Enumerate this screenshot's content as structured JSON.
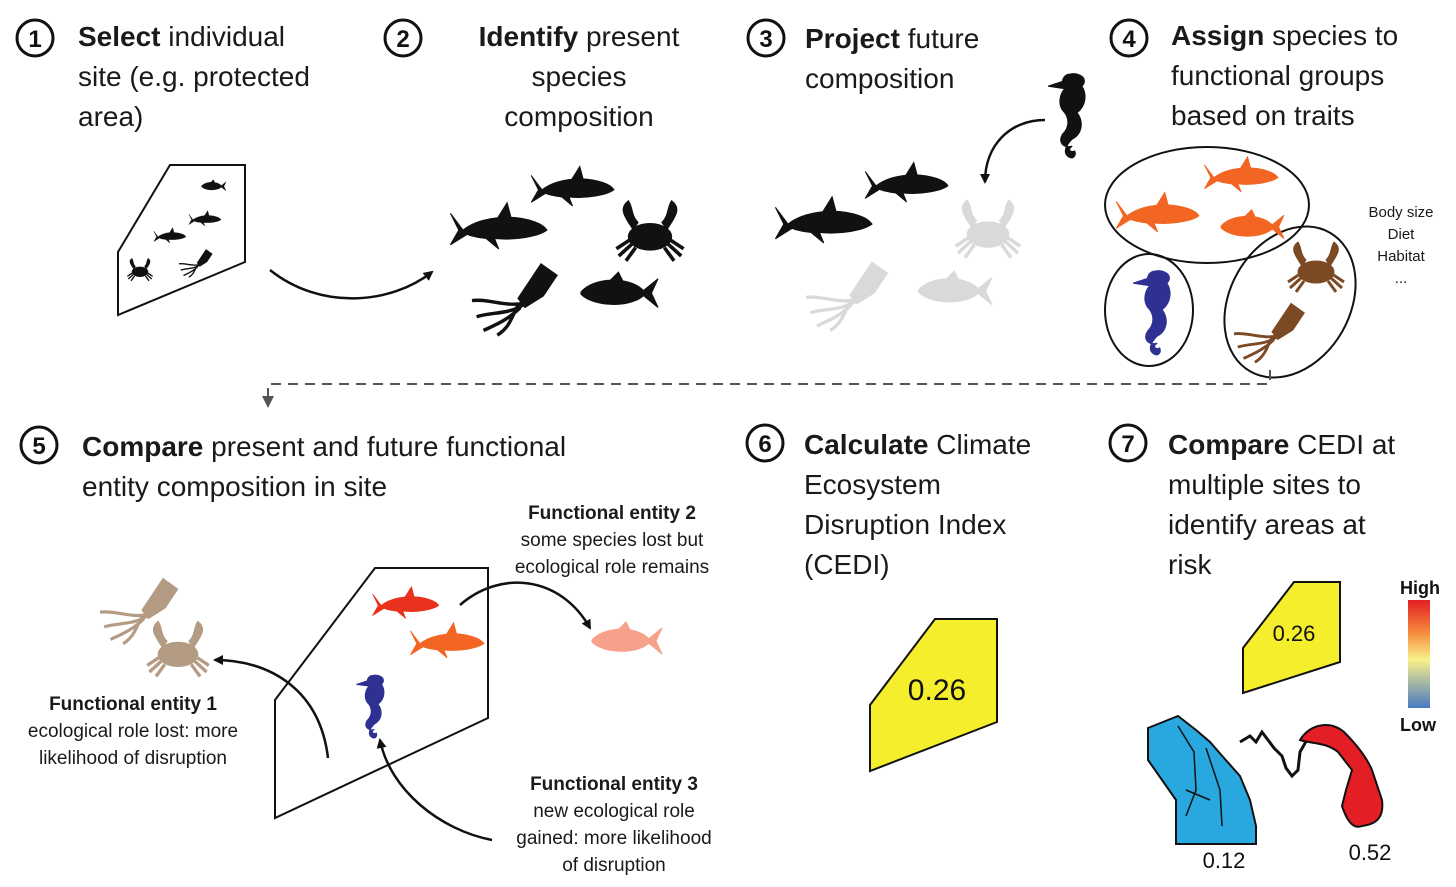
{
  "steps": [
    {
      "num": "1",
      "bold": "Select",
      "rest_l1": " individual",
      "l2": "site (e.g. protected",
      "l3": "area)"
    },
    {
      "num": "2",
      "bold": "Identify",
      "rest_l1": " present",
      "l2": "species",
      "l3": "composition"
    },
    {
      "num": "3",
      "bold": "Project",
      "rest_l1": " future",
      "l2": "composition"
    },
    {
      "num": "4",
      "bold": "Assign",
      "rest_l1": " species to",
      "l2": "functional groups",
      "l3": "based on traits"
    },
    {
      "num": "5",
      "bold": "Compare",
      "rest_l1": " present and future  functional",
      "l2": "entity composition in site"
    },
    {
      "num": "6",
      "bold": "Calculate",
      "rest_l1": " Climate",
      "l2": "Ecosystem",
      "l3": "Disruption Index",
      "l4": "(CEDI)"
    },
    {
      "num": "7",
      "bold": "Compare",
      "rest_l1": " CEDI at",
      "l2": "multiple sites to",
      "l3": "identify areas at",
      "l4": "risk"
    }
  ],
  "traits": [
    "Body size",
    "Diet",
    "Habitat",
    "..."
  ],
  "entities": {
    "e1": {
      "title": "Functional entity 1",
      "l1": "ecological role lost: more",
      "l2": "likelihood of disruption"
    },
    "e2": {
      "title": "Functional entity 2",
      "l1": "some species lost but",
      "l2": "ecological role remains"
    },
    "e3": {
      "title": "Functional entity 3",
      "l1": "new ecological role",
      "l2": "gained: more likelihood",
      "l3": "of disruption"
    }
  },
  "cedi": {
    "site": "0.26",
    "site_a": "0.26",
    "site_b": "0.12",
    "site_c": "0.52"
  },
  "legend": {
    "high": "High",
    "low": "Low"
  },
  "colors": {
    "black": "#111111",
    "faded": "#d9d9d9",
    "orange": "#f26522",
    "brown": "#7b4a24",
    "blue": "#2e3192",
    "red": "#e8321e",
    "salmon": "#f7a08a",
    "tan": "#b39b84",
    "yellow": "#f5ee2c",
    "cyan": "#29a8df",
    "darkred": "#e31e25"
  }
}
